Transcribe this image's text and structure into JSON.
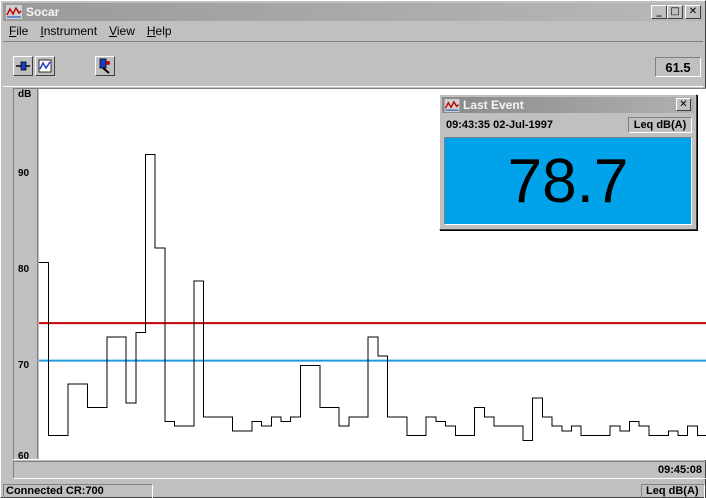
{
  "window": {
    "title": "Socar",
    "app_icon": "graph-icon",
    "minimize": "_",
    "maximize": "□",
    "close": "✕"
  },
  "menu": [
    {
      "prefix": "",
      "ul": "F",
      "rest": "ile"
    },
    {
      "prefix": "",
      "ul": "I",
      "rest": "nstrument"
    },
    {
      "prefix": "",
      "ul": "V",
      "rest": "iew"
    },
    {
      "prefix": "",
      "ul": "H",
      "rest": "elp"
    }
  ],
  "toolbar": {
    "buttons": [
      "connect-icon",
      "download-icon",
      "settings-icon"
    ],
    "level_readout": "61.5"
  },
  "axis": {
    "unit": "dB",
    "ticks": [
      "90",
      "80",
      "70",
      "60"
    ]
  },
  "chart_data": {
    "type": "line",
    "ylabel": "dB",
    "ylim": [
      59.5,
      99
    ],
    "y_ticks": [
      60,
      70,
      80,
      90
    ],
    "thresholds": [
      {
        "value": 74,
        "color": "#c80000"
      },
      {
        "value": 70,
        "color": "#1e9be0"
      }
    ],
    "series_color": "#000000",
    "x_end_label": "09:45:08",
    "step_levels": [
      80.5,
      62,
      62,
      67.5,
      67.5,
      65,
      65,
      72.5,
      72.5,
      65.5,
      73,
      92,
      82,
      63.5,
      63,
      63,
      78.5,
      64,
      64,
      64,
      62.5,
      62.5,
      63.5,
      63,
      64,
      63.5,
      64,
      69.5,
      69.5,
      65,
      65,
      63,
      64,
      64,
      72.5,
      70.5,
      64,
      64,
      62,
      62,
      64,
      63.5,
      63,
      62,
      62,
      65,
      64,
      63,
      63,
      63,
      61.5,
      66,
      64,
      63,
      62.5,
      63,
      62,
      62,
      62,
      63,
      62.5,
      63.5,
      63,
      62,
      62,
      62.5,
      62,
      63,
      62
    ]
  },
  "time_end": "09:45:08",
  "status": {
    "left": "Connected CR:700",
    "right": "Leq dB(A)"
  },
  "popup": {
    "title": "Last Event",
    "icon": "graph-icon",
    "close": "✕",
    "timestamp": "09:43:35  02-Jul-1997",
    "unit": "Leq dB(A)",
    "value": "78.7",
    "display_color": "#00a2ea"
  }
}
